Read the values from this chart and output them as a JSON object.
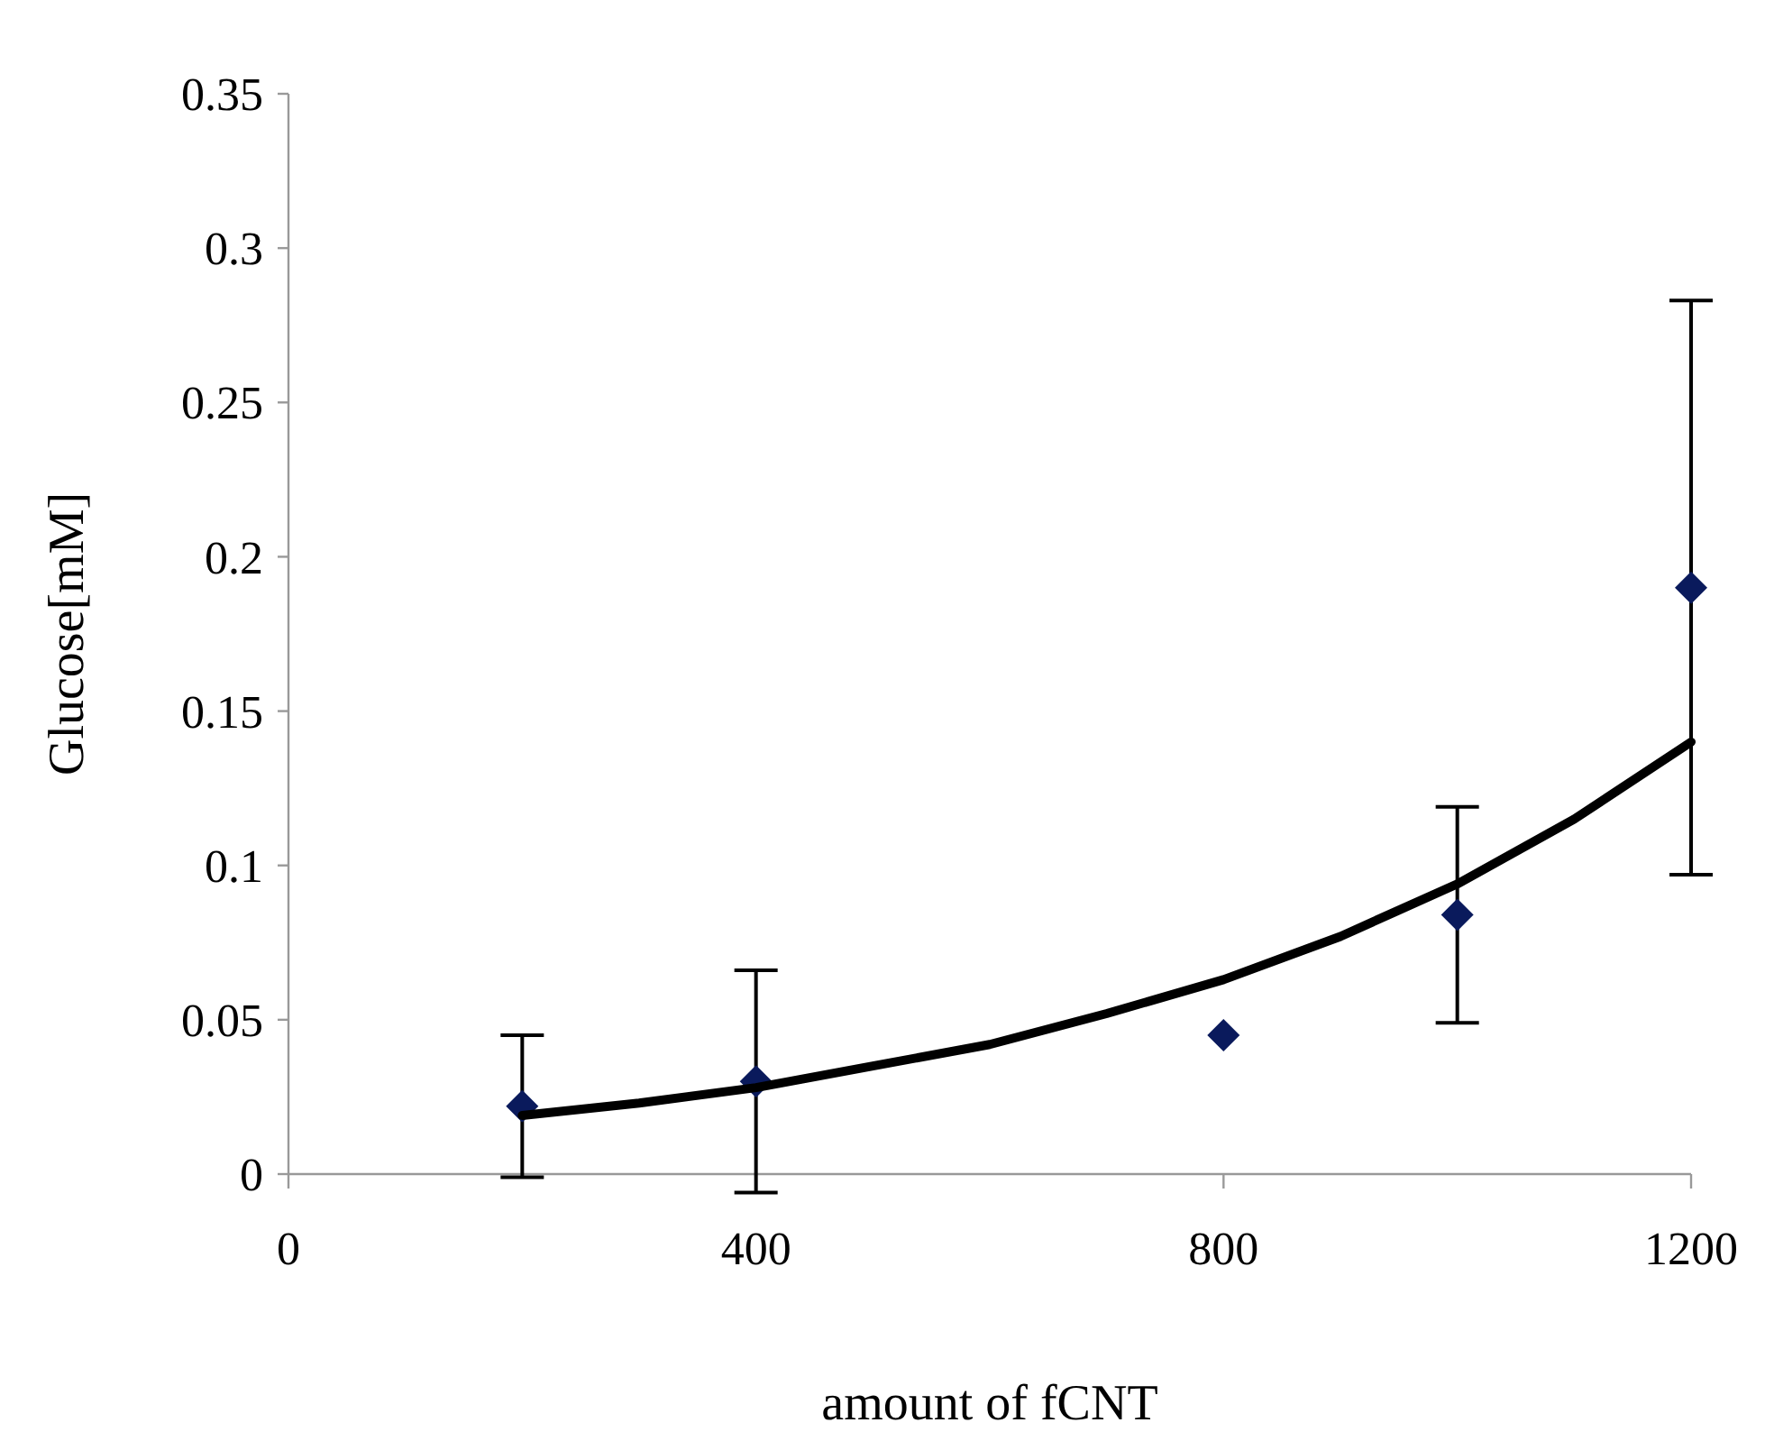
{
  "chart_data": {
    "type": "scatter",
    "xlabel": "amount of fCNT",
    "ylabel": "Glucose[mM]",
    "xlim": [
      0,
      1200
    ],
    "xticks": [
      0,
      400,
      800,
      1200
    ],
    "ylim": [
      0,
      0.35
    ],
    "yticks": [
      0,
      0.05,
      0.1,
      0.15,
      0.2,
      0.25,
      0.3,
      0.35
    ],
    "grid": false,
    "marker": "diamond",
    "series": [
      {
        "color": "#0a1a5c",
        "x": [
          200,
          400,
          800,
          1000,
          1200
        ],
        "values": [
          0.022,
          0.03,
          0.045,
          0.084,
          0.19
        ],
        "errors": [
          0.023,
          0.036,
          null,
          0.035,
          0.093
        ]
      },
      {
        "type": "line",
        "color": "#000000",
        "marker": "none",
        "line_style": "solid",
        "x": [
          200,
          300,
          400,
          500,
          600,
          700,
          800,
          900,
          1000,
          1100,
          1200
        ],
        "values": [
          0.019,
          0.023,
          0.028,
          0.035,
          0.042,
          0.052,
          0.063,
          0.077,
          0.094,
          0.115,
          0.14
        ]
      }
    ]
  }
}
